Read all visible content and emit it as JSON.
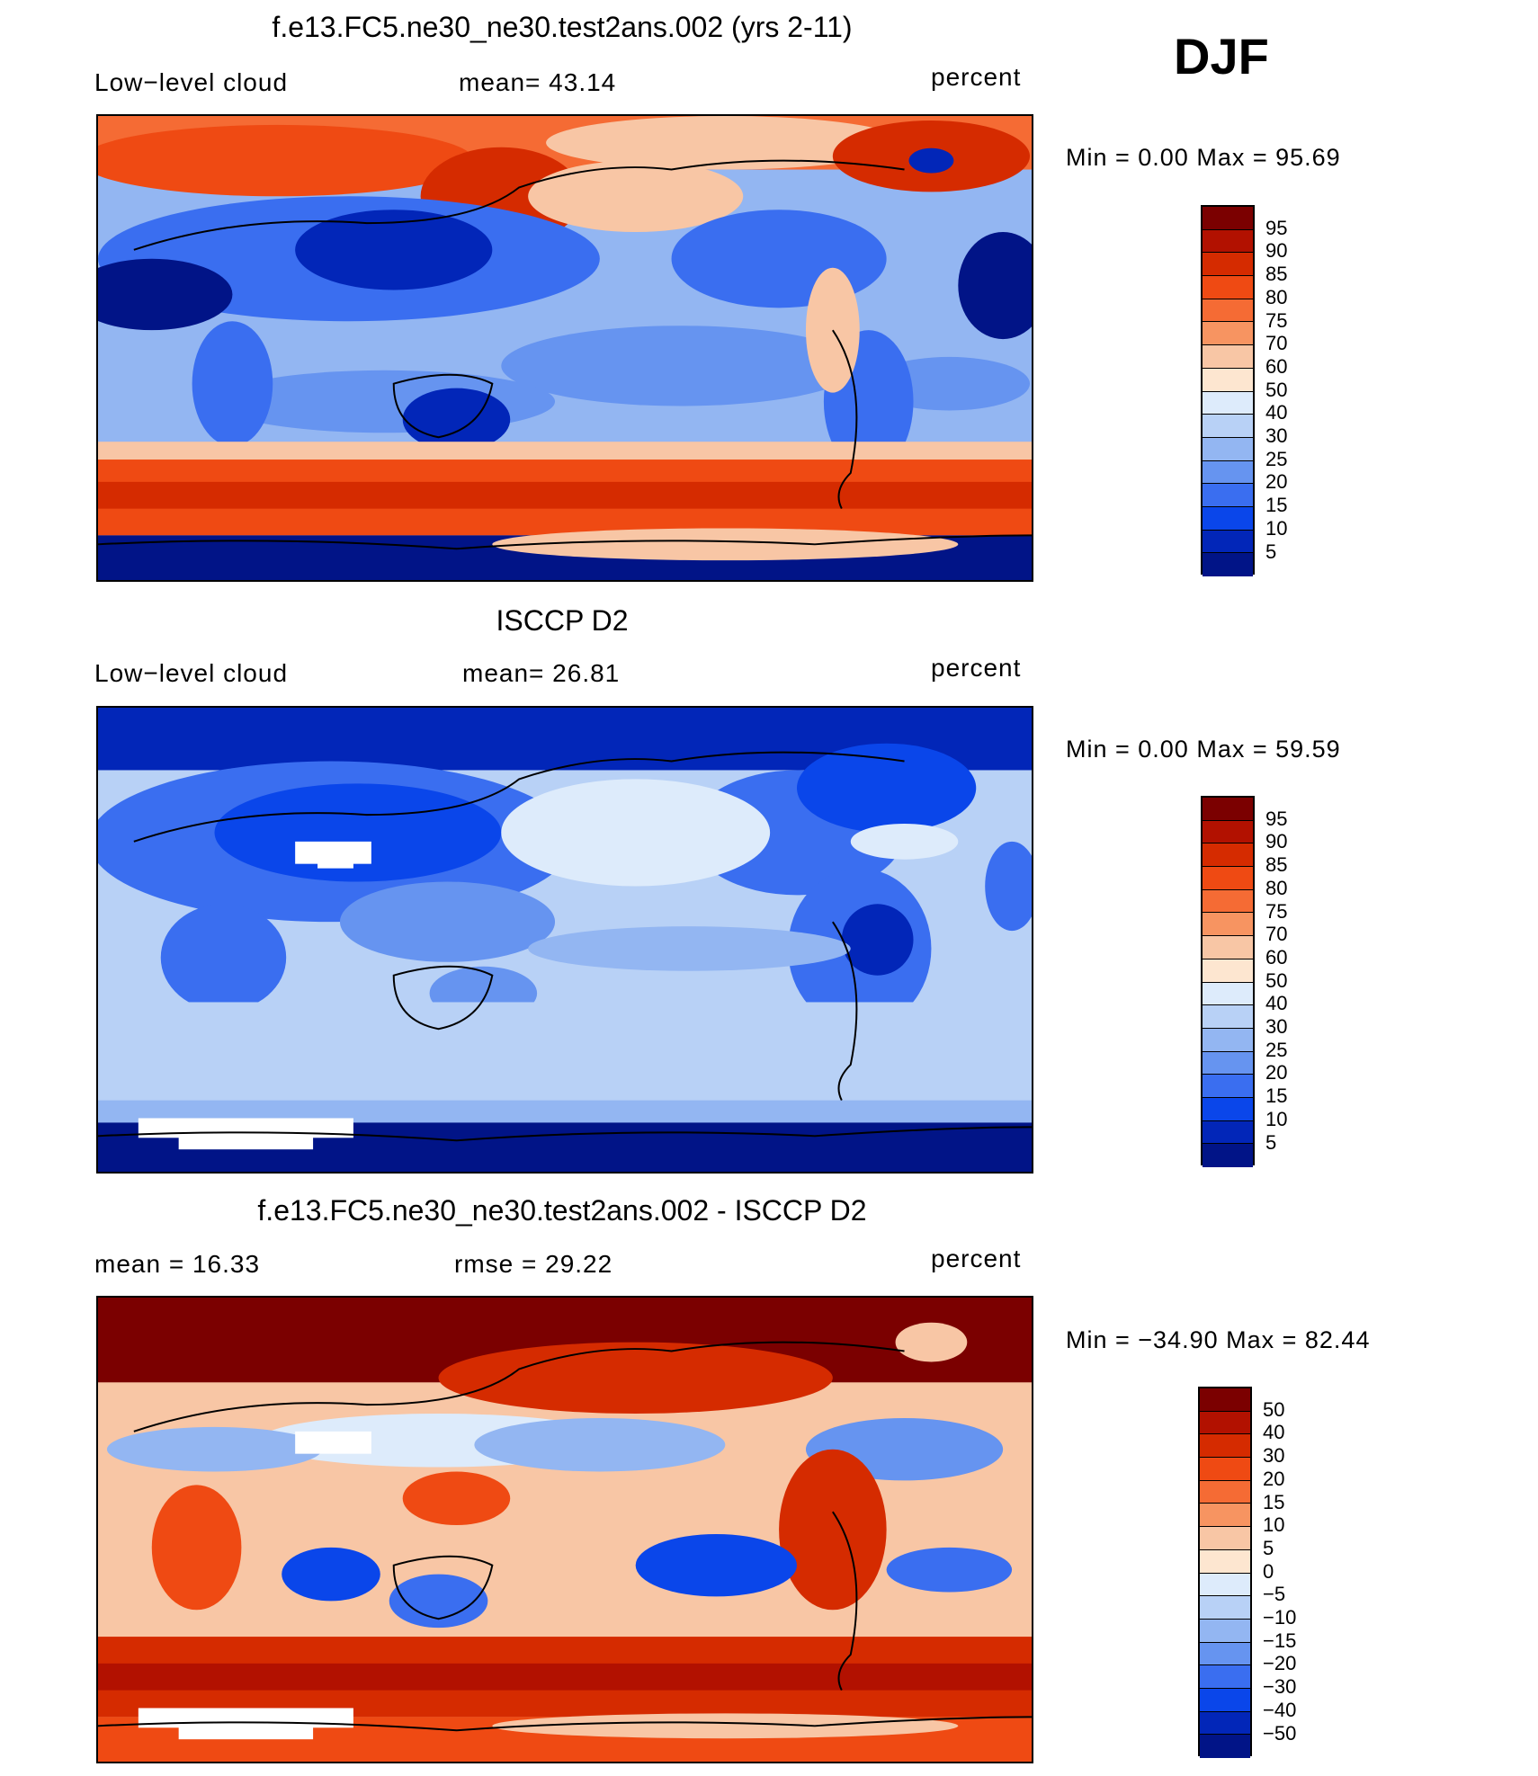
{
  "season": "DJF",
  "colors": {
    "abs_scale": [
      "#7b0000",
      "#b21100",
      "#d52b00",
      "#ef4a13",
      "#f56b34",
      "#f79461",
      "#f8c6a5",
      "#fde6d0",
      "#ddebfb",
      "#b8d1f6",
      "#93b6f2",
      "#6694f0",
      "#3a6ef0",
      "#0a46ea",
      "#0226b8",
      "#011487"
    ],
    "diff_scale": [
      "#7b0000",
      "#b21100",
      "#d52b00",
      "#ef4a13",
      "#f56b34",
      "#f79461",
      "#f8c6a5",
      "#fde6d0",
      "#ddebfb",
      "#b8d1f6",
      "#93b6f2",
      "#6694f0",
      "#3a6ef0",
      "#0a46ea",
      "#0226b8",
      "#011487"
    ]
  },
  "panels": [
    {
      "title": "f.e13.FC5.ne30_ne30.test2ans.002 (yrs 2-11)",
      "left_label": "Low−level cloud",
      "center_label": "mean=   43.14",
      "units": "percent",
      "minmax": "Min =     0.00  Max =    95.69",
      "colorbar_labels": [
        "95",
        "90",
        "85",
        "80",
        "75",
        "70",
        "60",
        "50",
        "40",
        "30",
        "25",
        "20",
        "15",
        "10",
        "5"
      ]
    },
    {
      "title": "ISCCP D2",
      "left_label": "Low−level cloud",
      "center_label": "mean=   26.81",
      "units": "percent",
      "minmax": "Min =     0.00  Max =    59.59",
      "colorbar_labels": [
        "95",
        "90",
        "85",
        "80",
        "75",
        "70",
        "60",
        "50",
        "40",
        "30",
        "25",
        "20",
        "15",
        "10",
        "5"
      ]
    },
    {
      "title": "f.e13.FC5.ne30_ne30.test2ans.002 - ISCCP D2",
      "left_label": "mean  =    16.33",
      "center_label": "rmse  =    29.22",
      "units": "percent",
      "minmax": "Min  =  −34.90  Max  =    82.44",
      "colorbar_labels": [
        "50",
        "40",
        "30",
        "20",
        "15",
        "10",
        "5",
        "0",
        "−5",
        "−10",
        "−15",
        "−20",
        "−30",
        "−40",
        "−50"
      ]
    }
  ],
  "chart_data": [
    {
      "type": "heatmap",
      "title": "f.e13.FC5.ne30_ne30.test2ans.002 (yrs 2-11)",
      "variable": "Low−level cloud",
      "units": "percent",
      "mean": 43.14,
      "min": 0.0,
      "max": 95.69,
      "contour_levels": [
        5,
        10,
        15,
        20,
        25,
        30,
        40,
        50,
        60,
        70,
        75,
        80,
        85,
        90,
        95
      ]
    },
    {
      "type": "heatmap",
      "title": "ISCCP D2",
      "variable": "Low−level cloud",
      "units": "percent",
      "mean": 26.81,
      "min": 0.0,
      "max": 59.59,
      "contour_levels": [
        5,
        10,
        15,
        20,
        25,
        30,
        40,
        50,
        60,
        70,
        75,
        80,
        85,
        90,
        95
      ]
    },
    {
      "type": "heatmap",
      "title": "f.e13.FC5.ne30_ne30.test2ans.002 - ISCCP D2",
      "units": "percent",
      "mean": 16.33,
      "rmse": 29.22,
      "min": -34.9,
      "max": 82.44,
      "contour_levels": [
        -50,
        -40,
        -30,
        -20,
        -15,
        -10,
        -5,
        0,
        5,
        10,
        15,
        20,
        30,
        40,
        50
      ]
    }
  ]
}
